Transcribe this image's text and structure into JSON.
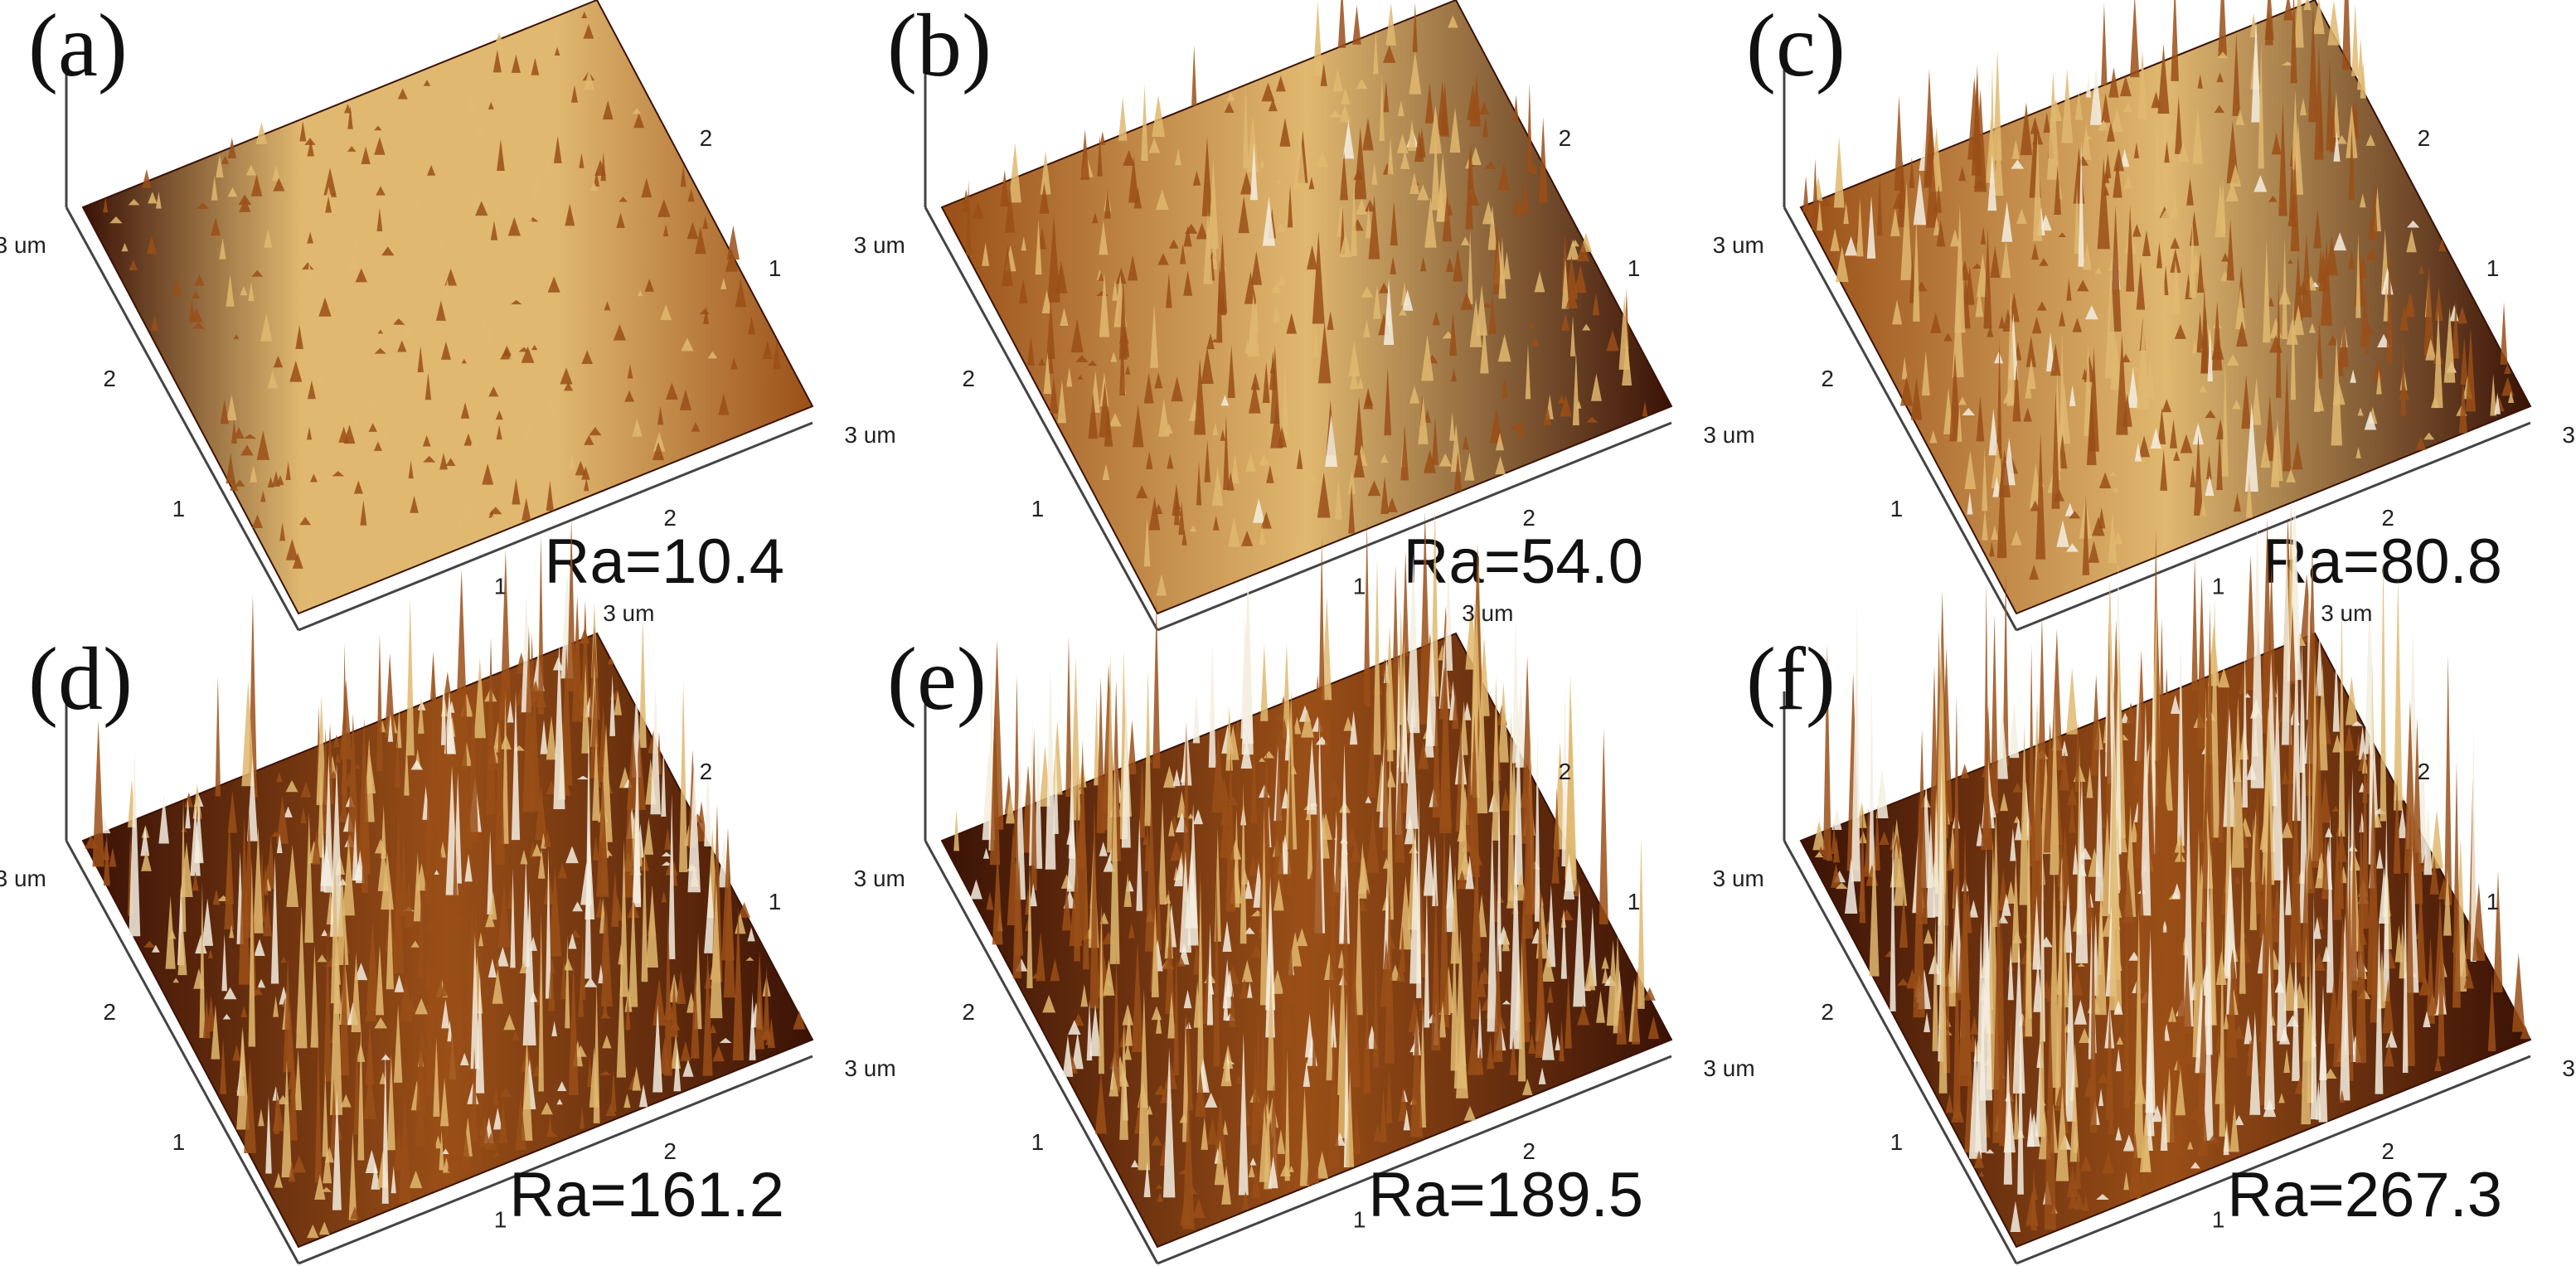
{
  "figure": {
    "panels": [
      {
        "letter": "(a)",
        "ra_text": "Ra=10.4",
        "ra": 10.4,
        "relative_peak_height": 0.05
      },
      {
        "letter": "(b)",
        "ra_text": "Ra=54.0",
        "ra": 54.0,
        "relative_peak_height": 0.28
      },
      {
        "letter": "(c)",
        "ra_text": "Ra=80.8",
        "ra": 80.8,
        "relative_peak_height": 0.42
      },
      {
        "letter": "(d)",
        "ra_text": "Ra=161.2",
        "ra": 161.2,
        "relative_peak_height": 0.66
      },
      {
        "letter": "(e)",
        "ra_text": "Ra=189.5",
        "ra": 189.5,
        "relative_peak_height": 0.78
      },
      {
        "letter": "(f)",
        "ra_text": "Ra=267.3",
        "ra": 267.3,
        "relative_peak_height": 0.95
      }
    ],
    "axis": {
      "unit_label": "3 um",
      "tick_1": "1",
      "tick_2": "2"
    },
    "colors": {
      "surface_dark": "#3a1206",
      "surface_mid": "#9a4f17",
      "surface_light": "#e0b870",
      "peak_highlight": "#f4eee0",
      "axis_line": "#444444"
    }
  }
}
